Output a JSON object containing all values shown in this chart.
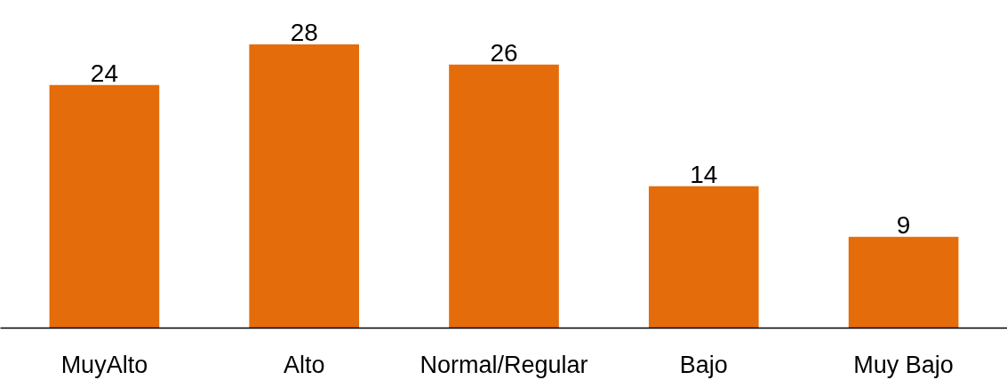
{
  "chart_data": {
    "type": "bar",
    "categories": [
      "MuyAlto",
      "Alto",
      "Normal/Regular",
      "Bajo",
      "Muy Bajo"
    ],
    "values": [
      24,
      28,
      26,
      14,
      9
    ],
    "color": "#e46c0a",
    "data_labels": true,
    "tick_labels": "x",
    "grid": false
  }
}
